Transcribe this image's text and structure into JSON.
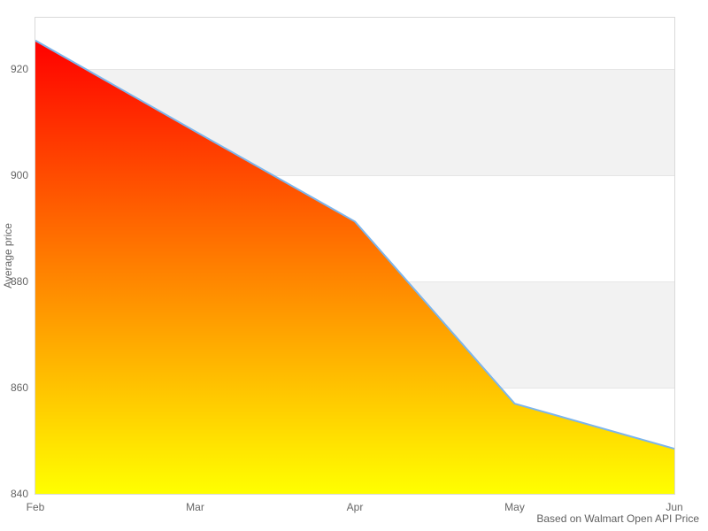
{
  "chart_data": {
    "type": "area",
    "x": [
      "Feb",
      "Mar",
      "Apr",
      "May",
      "Jun"
    ],
    "values": [
      925.4,
      908.3,
      891.3,
      857.0,
      848.5
    ],
    "title": "",
    "xlabel": "",
    "ylabel": "Average price",
    "caption": "Based on Walmart Open API Price",
    "ylim": [
      840,
      929.7
    ],
    "y_ticks": [
      920,
      900,
      880,
      860,
      840
    ],
    "x_tick_labels": [
      "Feb",
      "Mar",
      "Apr",
      "May",
      "Jun"
    ],
    "alternating_bands": [
      [
        900,
        920
      ],
      [
        860,
        880
      ]
    ],
    "legend_position": "none",
    "grid": "horizontal",
    "colors": {
      "line": "#7cb5ec",
      "area_gradient_top": "#ff0000",
      "area_gradient_bottom": "#ffff00",
      "band": "#f2f2f2",
      "gridline": "#e6e6e6",
      "plot_border": "#d9d9d9",
      "tick_text": "#666666",
      "caption_text": "#606060"
    }
  }
}
